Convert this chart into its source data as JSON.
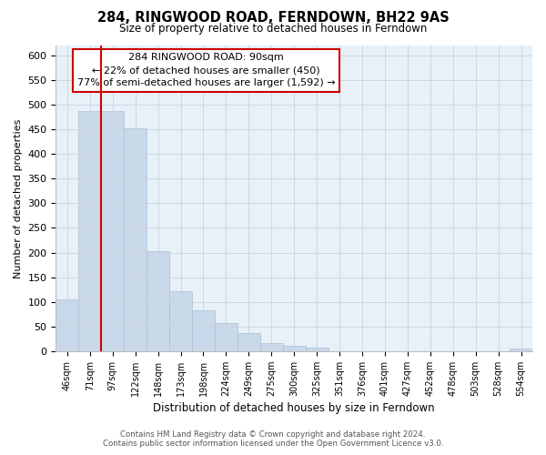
{
  "title": "284, RINGWOOD ROAD, FERNDOWN, BH22 9AS",
  "subtitle": "Size of property relative to detached houses in Ferndown",
  "xlabel": "Distribution of detached houses by size in Ferndown",
  "ylabel": "Number of detached properties",
  "bar_labels": [
    "46sqm",
    "71sqm",
    "97sqm",
    "122sqm",
    "148sqm",
    "173sqm",
    "198sqm",
    "224sqm",
    "249sqm",
    "275sqm",
    "300sqm",
    "325sqm",
    "351sqm",
    "376sqm",
    "401sqm",
    "427sqm",
    "452sqm",
    "478sqm",
    "503sqm",
    "528sqm",
    "554sqm"
  ],
  "bar_values": [
    105,
    487,
    487,
    452,
    202,
    122,
    83,
    57,
    36,
    16,
    10,
    8,
    0,
    0,
    0,
    0,
    0,
    0,
    0,
    0,
    5
  ],
  "bar_color": "#c9d9ea",
  "bar_edge_color": "#a8c0d8",
  "vline_color": "#cc0000",
  "vline_x": 1.5,
  "ylim": [
    0,
    620
  ],
  "yticks": [
    0,
    50,
    100,
    150,
    200,
    250,
    300,
    350,
    400,
    450,
    500,
    550,
    600
  ],
  "annotation_title": "284 RINGWOOD ROAD: 90sqm",
  "annotation_line1": "← 22% of detached houses are smaller (450)",
  "annotation_line2": "77% of semi-detached houses are larger (1,592) →",
  "footer_line1": "Contains HM Land Registry data © Crown copyright and database right 2024.",
  "footer_line2": "Contains public sector information licensed under the Open Government Licence v3.0.",
  "background_color": "#ffffff",
  "plot_bg_color": "#e8f0f8",
  "grid_color": "#c8d4e0"
}
